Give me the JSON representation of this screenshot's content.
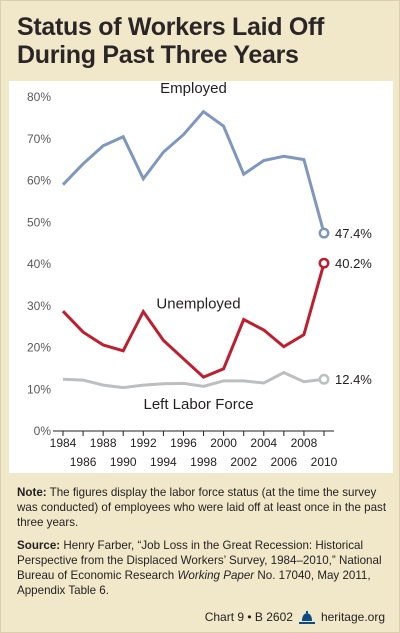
{
  "title_lines": [
    "Status of Workers Laid Off",
    "During Past Three Years"
  ],
  "chart_data": {
    "type": "line",
    "title": "Status of Workers Laid Off During Past Three Years",
    "x": [
      1984,
      1986,
      1988,
      1990,
      1992,
      1994,
      1996,
      1998,
      2000,
      2002,
      2004,
      2006,
      2008,
      2010
    ],
    "x_tick_labels_top": [
      "1984",
      "1988",
      "1992",
      "1996",
      "2000",
      "2004",
      "2008"
    ],
    "x_tick_labels_bottom": [
      "1986",
      "1990",
      "1994",
      "1998",
      "2002",
      "2006",
      "2010"
    ],
    "y_tick_labels": [
      "0%",
      "10%",
      "20%",
      "30%",
      "40%",
      "50%",
      "60%",
      "70%",
      "80%"
    ],
    "ylim": [
      0,
      85
    ],
    "grid": false,
    "legend": "none (series labels placed on chart)",
    "series": [
      {
        "name": "Employed",
        "color": "#7f97bf",
        "values": [
          59,
          64,
          68.3,
          70.5,
          60.4,
          66.8,
          71,
          76.5,
          73,
          61.5,
          64.8,
          65.8,
          65,
          47.4
        ],
        "end_label": "47.4%"
      },
      {
        "name": "Unemployed",
        "color": "#be1e2d",
        "values": [
          28.7,
          23.7,
          20.6,
          19.2,
          28.6,
          21.7,
          17.3,
          12.9,
          14.9,
          26.7,
          24.2,
          20.2,
          23.1,
          40.2
        ],
        "end_label": "40.2%"
      },
      {
        "name": "Left Labor Force",
        "color": "#bcbec0",
        "values": [
          12.4,
          12.2,
          11,
          10.4,
          11,
          11.3,
          11.4,
          10.7,
          12,
          12,
          11.5,
          14,
          11.8,
          12.4
        ],
        "end_label": "12.4%"
      }
    ]
  },
  "notes": {
    "note_label": "Note:",
    "note_text": " The figures display the labor force status (at the time the survey was conducted) of employees who were laid off at least once in the past three years.",
    "source_label": "Source:",
    "source_text_1": " Henry Farber, “Job Loss in the Great Recession: Historical Perspective from the Displaced Workers’ Survey, 1984–2010,” National Bureau of Economic Research ",
    "source_italic": "Working Paper",
    "source_text_2": " No. 17040, May 2011, Appendix Table 6."
  },
  "footer": {
    "chart_id": "Chart 9 • B 2602",
    "site": "heritage.org",
    "logo_icon": "liberty-bell-icon"
  }
}
